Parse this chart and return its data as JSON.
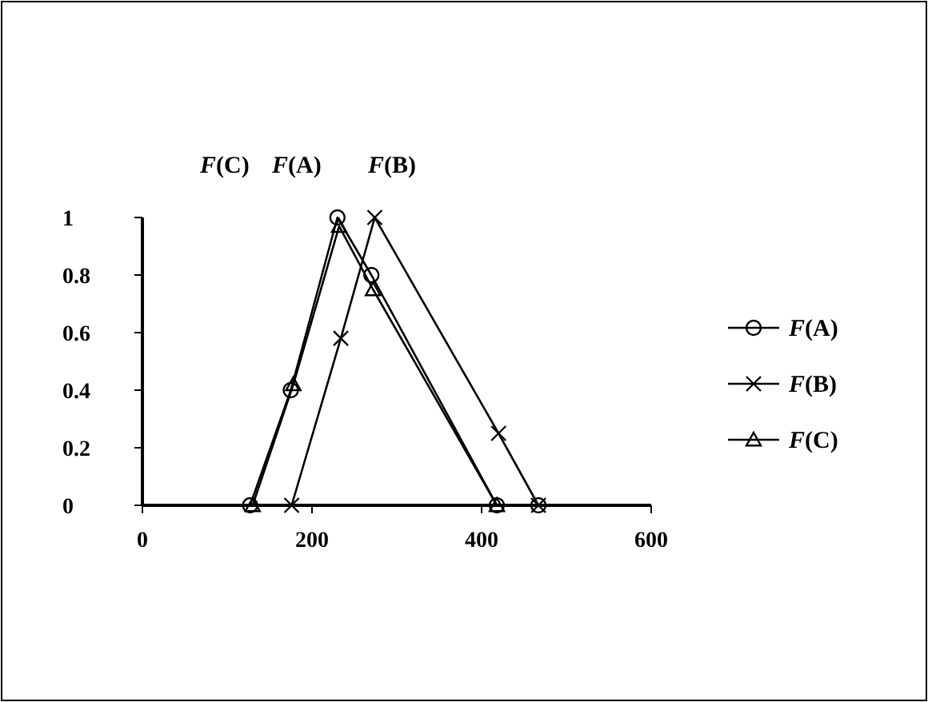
{
  "chart_data": {
    "type": "line",
    "annotations": [
      "F(C)",
      "F(A)",
      "F(B)"
    ],
    "xlim": [
      0,
      600
    ],
    "xticks": [
      0,
      200,
      400,
      600
    ],
    "ylim": [
      0,
      1
    ],
    "yticks": [
      0,
      0.2,
      0.4,
      0.6,
      0.8,
      1
    ],
    "grid": false,
    "legend": "right",
    "series": [
      {
        "name": "F(A)",
        "color": "#000000",
        "marker": "circle",
        "x": [
          127,
          175,
          230,
          270,
          418,
          467
        ],
        "values": [
          0,
          0.4,
          1,
          0.8,
          0,
          0
        ]
      },
      {
        "name": "F(B)",
        "color": "#000000",
        "marker": "cross",
        "x": [
          176,
          234,
          274,
          420,
          467
        ],
        "values": [
          0,
          0.58,
          1,
          0.25,
          0
        ]
      },
      {
        "name": "F(C)",
        "color": "#000000",
        "marker": "triangle",
        "x": [
          130,
          178,
          232,
          272,
          418
        ],
        "values": [
          0,
          0.42,
          0.97,
          0.75,
          0
        ]
      }
    ]
  }
}
